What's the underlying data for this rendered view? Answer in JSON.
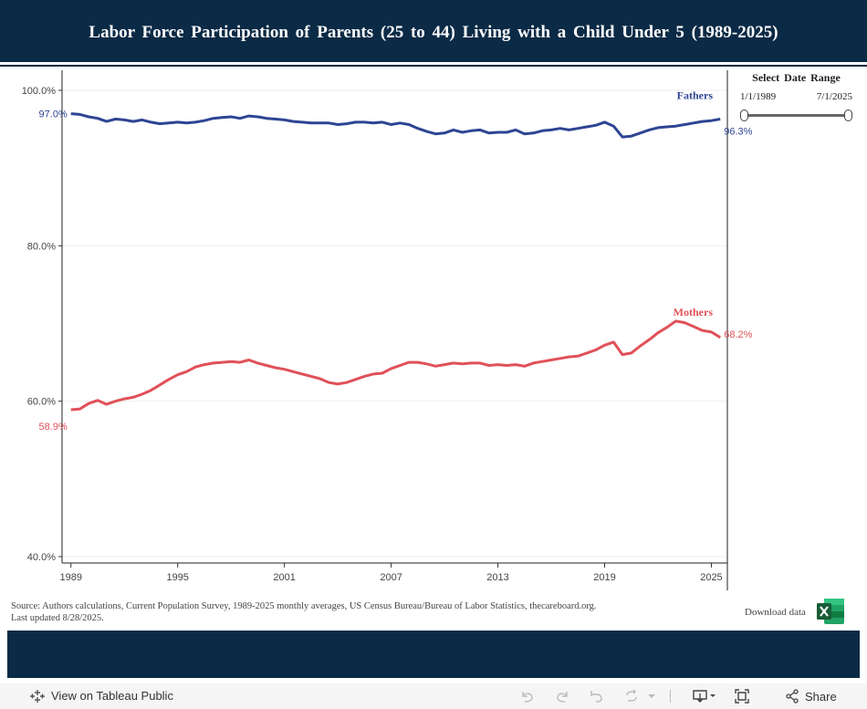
{
  "header": {
    "title": "Labor Force Participation of Parents (25 to 44) Living with a Child Under 5 (1989-2025)"
  },
  "date_range": {
    "title": "Select Date Range",
    "start": "1/1/1989",
    "end": "7/1/2025"
  },
  "footer": {
    "source": "Source: Authors calculations, Current Population Survey, 1989-2025 monthly averages, US Census Bureau/Bureau of Labor Statistics, thecareboard.org.",
    "updated": "Last updated 8/28/2025.",
    "download_label": "Download data"
  },
  "toolbar": {
    "view_label": "View on Tableau Public",
    "share_label": "Share"
  },
  "colors": {
    "fathers": "#2e4593",
    "mothers": "#e05159",
    "header_bg": "#0b2a45"
  },
  "icons": [
    "tableau-icon",
    "undo-icon",
    "redo-icon",
    "revert-icon",
    "refresh-icon",
    "dropdown-icon",
    "download-icon",
    "fullscreen-icon",
    "share-icon",
    "excel-icon"
  ],
  "chart_data": {
    "type": "line",
    "title": "Labor Force Participation of Parents (25 to 44) Living with a Child Under 5 (1989-2025)",
    "x_ticks": [
      "1989",
      "1995",
      "2001",
      "2007",
      "2013",
      "2019",
      "2025"
    ],
    "y_ticks": [
      "40.0%",
      "60.0%",
      "80.0%",
      "100.0%"
    ],
    "ylim": [
      40,
      100
    ],
    "xlim": [
      1988.5,
      2025.9
    ],
    "grid": true,
    "series": [
      {
        "name": "Fathers",
        "start_label": "97.0%",
        "end_label": "96.3%",
        "x": [
          1989,
          1989.5,
          1990,
          1990.5,
          1991,
          1991.5,
          1992,
          1992.5,
          1993,
          1993.5,
          1994,
          1994.5,
          1995,
          1995.5,
          1996,
          1996.5,
          1997,
          1997.5,
          1998,
          1998.5,
          1999,
          1999.5,
          2000,
          2000.5,
          2001,
          2001.5,
          2002,
          2002.5,
          2003,
          2003.5,
          2004,
          2004.5,
          2005,
          2005.5,
          2006,
          2006.5,
          2007,
          2007.5,
          2008,
          2008.5,
          2009,
          2009.5,
          2010,
          2010.5,
          2011,
          2011.5,
          2012,
          2012.5,
          2013,
          2013.5,
          2014,
          2014.5,
          2015,
          2015.5,
          2016,
          2016.5,
          2017,
          2017.5,
          2018,
          2018.5,
          2019,
          2019.5,
          2020,
          2020.5,
          2021,
          2021.5,
          2022,
          2022.5,
          2023,
          2023.5,
          2024,
          2024.5,
          2025,
          2025.5
        ],
        "values": [
          97.0,
          96.9,
          96.6,
          96.4,
          96.0,
          96.3,
          96.2,
          96.0,
          96.2,
          95.9,
          95.7,
          95.8,
          95.9,
          95.8,
          95.9,
          96.1,
          96.4,
          96.5,
          96.6,
          96.4,
          96.7,
          96.6,
          96.4,
          96.3,
          96.2,
          96.0,
          95.9,
          95.8,
          95.8,
          95.8,
          95.6,
          95.7,
          95.9,
          95.9,
          95.8,
          95.9,
          95.6,
          95.8,
          95.6,
          95.1,
          94.7,
          94.4,
          94.5,
          94.9,
          94.6,
          94.8,
          94.9,
          94.5,
          94.6,
          94.6,
          94.9,
          94.4,
          94.5,
          94.8,
          94.9,
          95.1,
          94.9,
          95.1,
          95.3,
          95.5,
          95.9,
          95.4,
          94.0,
          94.1,
          94.5,
          94.9,
          95.2,
          95.3,
          95.4,
          95.6,
          95.8,
          96.0,
          96.1,
          96.3
        ]
      },
      {
        "name": "Mothers",
        "start_label": "58.9%",
        "end_label": "68.2%",
        "x": [
          1989,
          1989.5,
          1990,
          1990.5,
          1991,
          1991.5,
          1992,
          1992.5,
          1993,
          1993.5,
          1994,
          1994.5,
          1995,
          1995.5,
          1996,
          1996.5,
          1997,
          1997.5,
          1998,
          1998.5,
          1999,
          1999.5,
          2000,
          2000.5,
          2001,
          2001.5,
          2002,
          2002.5,
          2003,
          2003.5,
          2004,
          2004.5,
          2005,
          2005.5,
          2006,
          2006.5,
          2007,
          2007.5,
          2008,
          2008.5,
          2009,
          2009.5,
          2010,
          2010.5,
          2011,
          2011.5,
          2012,
          2012.5,
          2013,
          2013.5,
          2014,
          2014.5,
          2015,
          2015.5,
          2016,
          2016.5,
          2017,
          2017.5,
          2018,
          2018.5,
          2019,
          2019.5,
          2020,
          2020.5,
          2021,
          2021.5,
          2022,
          2022.5,
          2023,
          2023.5,
          2024,
          2024.5,
          2025,
          2025.5
        ],
        "values": [
          58.9,
          59.0,
          59.7,
          60.1,
          59.6,
          60.0,
          60.3,
          60.5,
          60.9,
          61.4,
          62.1,
          62.8,
          63.4,
          63.8,
          64.4,
          64.7,
          64.9,
          65.0,
          65.1,
          65.0,
          65.3,
          64.9,
          64.6,
          64.3,
          64.1,
          63.8,
          63.5,
          63.2,
          62.9,
          62.4,
          62.2,
          62.4,
          62.8,
          63.2,
          63.5,
          63.6,
          64.2,
          64.6,
          65.0,
          65.0,
          64.8,
          64.5,
          64.7,
          64.9,
          64.8,
          64.9,
          64.9,
          64.6,
          64.7,
          64.6,
          64.7,
          64.5,
          64.9,
          65.1,
          65.3,
          65.5,
          65.7,
          65.8,
          66.2,
          66.6,
          67.2,
          67.6,
          66.0,
          66.2,
          67.1,
          67.9,
          68.8,
          69.5,
          70.3,
          70.1,
          69.6,
          69.1,
          68.9,
          68.2
        ]
      }
    ]
  }
}
